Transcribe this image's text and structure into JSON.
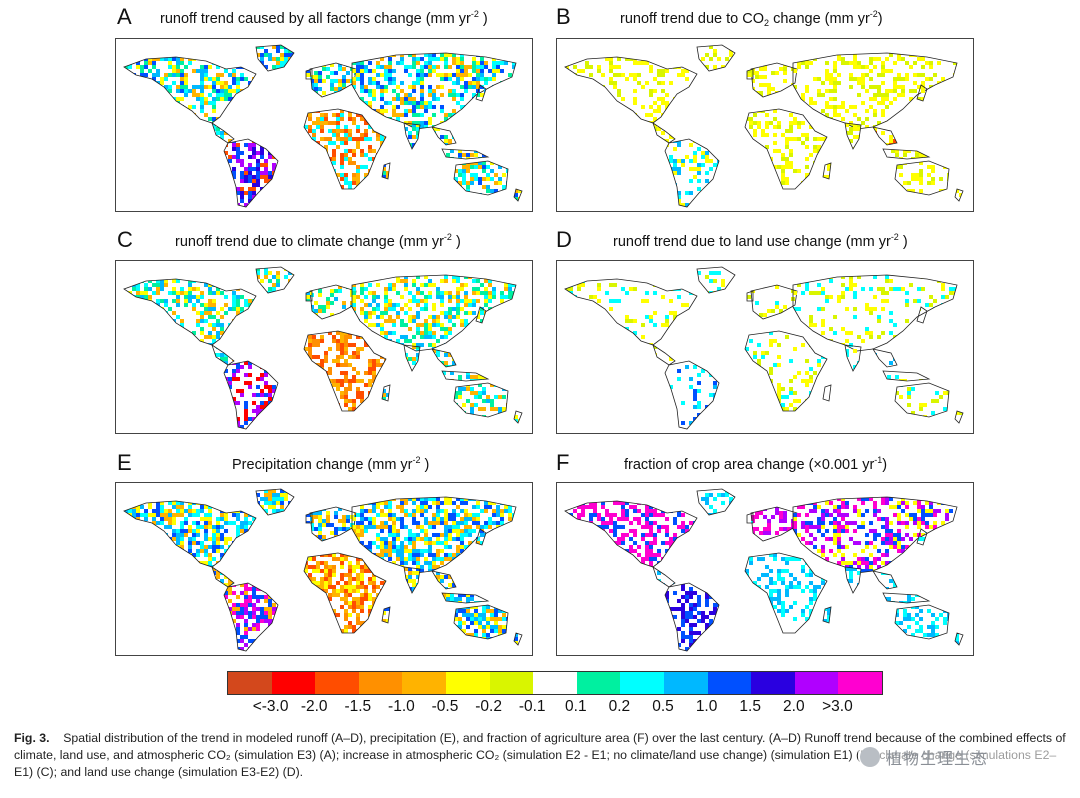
{
  "panels": [
    {
      "letter": "A",
      "title_main": "runoff trend caused by all factors change (mm yr",
      "title_sup": "-2",
      "title_end": " )"
    },
    {
      "letter": "B",
      "title_main": "runoff trend due to CO",
      "title_sub": "2",
      "title_mid": " change (mm yr",
      "title_sup": "-2",
      "title_end": ")"
    },
    {
      "letter": "C",
      "title_main": "runoff trend due to climate change (mm yr",
      "title_sup": "-2",
      "title_end": " )"
    },
    {
      "letter": "D",
      "title_main": "runoff trend due to land use change (mm yr",
      "title_sup": "-2",
      "title_end": " )"
    },
    {
      "letter": "E",
      "title_main": "Precipitation change (mm yr",
      "title_sup": "-2",
      "title_end": " )"
    },
    {
      "letter": "F",
      "title_main": "fraction of crop area change (×0.001 yr",
      "title_sup": "-1",
      "title_end": ")"
    }
  ],
  "colorbar": {
    "colors": [
      "#d3481c",
      "#ff0000",
      "#ff4d00",
      "#ff9000",
      "#ffb300",
      "#ffff00",
      "#d9f500",
      "#ffffff",
      "#00f0a0",
      "#00ffff",
      "#00b8ff",
      "#0050ff",
      "#2a00e0",
      "#b000ff",
      "#ff00d0"
    ],
    "labels": [
      "<-3.0",
      "-2.0",
      "-1.5",
      "-1.0",
      "-0.5",
      "-0.2",
      "-0.1",
      "0.1",
      "0.2",
      "0.5",
      "1.0",
      "1.5",
      "2.0",
      ">3.0"
    ]
  },
  "caption": {
    "fig_label": "Fig. 3.",
    "text": "Spatial distribution of the trend in modeled runoff (A–D), precipitation (E), and fraction of agriculture area (F) over the last century. (A–D) Runoff trend because of the combined effects of climate, land use, and atmospheric CO₂ (simulation E3) (A); increase in atmospheric CO₂ (simulation E2 - E1; no climate/land use change) (simulation E1) (B); climate change (simulations E2–E1) (C); and land use change (simulation E3-E2) (D)."
  },
  "watermark": {
    "text": "植物生理生态"
  },
  "chart_data": {
    "type": "heatmap",
    "description_panels": [
      "A",
      "B",
      "C",
      "D",
      "E",
      "F"
    ],
    "colorbar_bins": [
      "<-3.0",
      "-3.0 to -2.0",
      "-2.0 to -1.5",
      "-1.5 to -1.0",
      "-1.0 to -0.5",
      "-0.5 to -0.2",
      "-0.2 to -0.1",
      "-0.1 to 0.1",
      "0.1 to 0.2",
      "0.2 to 0.5",
      "0.5 to 1.0",
      "1.0 to 1.5",
      "1.5 to 2.0",
      "2.0 to 3.0",
      ">3.0"
    ]
  }
}
